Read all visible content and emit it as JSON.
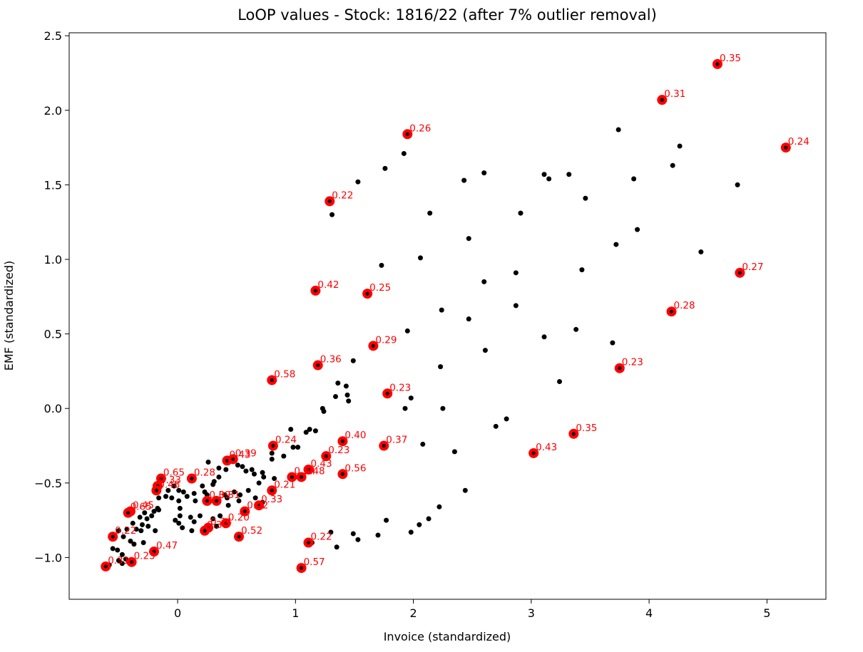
{
  "chart_data": {
    "type": "scatter",
    "title": "LoOP values - Stock: 1816/22 (after 7% outlier removal)",
    "xlabel": "Invoice (standardized)",
    "ylabel": "EMF (standardized)",
    "xlim": [
      -0.92,
      5.5
    ],
    "ylim": [
      -1.28,
      2.52
    ],
    "xticks": [
      0,
      1,
      2,
      3,
      4,
      5
    ],
    "yticks": [
      -1.0,
      -0.5,
      0.0,
      0.5,
      1.0,
      1.5,
      2.0,
      2.5
    ],
    "xtick_labels": [
      "0",
      "1",
      "2",
      "3",
      "4",
      "5"
    ],
    "ytick_labels": [
      "−1.0",
      "−0.5",
      "0.0",
      "0.5",
      "1.0",
      "1.5",
      "2.0",
      "2.5"
    ],
    "grid": false,
    "point_color": "#000000",
    "outlier_color": "#ff0000",
    "points": [
      [
        3.74,
        1.87
      ],
      [
        1.92,
        1.71
      ],
      [
        1.76,
        1.61
      ],
      [
        2.6,
        1.58
      ],
      [
        2.43,
        1.53
      ],
      [
        1.53,
        1.52
      ],
      [
        3.11,
        1.57
      ],
      [
        3.32,
        1.57
      ],
      [
        3.15,
        1.54
      ],
      [
        3.87,
        1.54
      ],
      [
        4.2,
        1.63
      ],
      [
        4.26,
        1.76
      ],
      [
        4.75,
        1.5
      ],
      [
        3.46,
        1.41
      ],
      [
        2.14,
        1.31
      ],
      [
        2.91,
        1.31
      ],
      [
        1.31,
        1.3
      ],
      [
        3.9,
        1.2
      ],
      [
        2.47,
        1.14
      ],
      [
        3.72,
        1.1
      ],
      [
        4.44,
        1.05
      ],
      [
        2.06,
        1.01
      ],
      [
        1.73,
        0.96
      ],
      [
        2.87,
        0.91
      ],
      [
        3.43,
        0.93
      ],
      [
        2.6,
        0.85
      ],
      [
        2.87,
        0.69
      ],
      [
        2.24,
        0.66
      ],
      [
        2.47,
        0.6
      ],
      [
        3.38,
        0.53
      ],
      [
        1.95,
        0.52
      ],
      [
        3.11,
        0.48
      ],
      [
        3.69,
        0.44
      ],
      [
        2.61,
        0.39
      ],
      [
        1.49,
        0.32
      ],
      [
        2.23,
        0.28
      ],
      [
        3.24,
        0.18
      ],
      [
        1.36,
        0.17
      ],
      [
        1.43,
        0.15
      ],
      [
        1.34,
        0.08
      ],
      [
        1.44,
        0.09
      ],
      [
        1.45,
        0.05
      ],
      [
        1.98,
        0.07
      ],
      [
        2.25,
        0.0
      ],
      [
        1.93,
        0.0
      ],
      [
        1.23,
        0.0
      ],
      [
        1.24,
        -0.02
      ],
      [
        2.7,
        -0.12
      ],
      [
        2.79,
        -0.07
      ],
      [
        0.96,
        -0.14
      ],
      [
        1.12,
        -0.14
      ],
      [
        1.17,
        -0.15
      ],
      [
        1.09,
        -0.16
      ],
      [
        2.08,
        -0.24
      ],
      [
        0.98,
        -0.26
      ],
      [
        1.02,
        -0.26
      ],
      [
        2.35,
        -0.29
      ],
      [
        0.9,
        -0.32
      ],
      [
        0.8,
        -0.3
      ],
      [
        0.8,
        -0.34
      ],
      [
        0.26,
        -0.36
      ],
      [
        0.35,
        -0.4
      ],
      [
        0.41,
        -0.41
      ],
      [
        0.51,
        -0.38
      ],
      [
        0.55,
        -0.39
      ],
      [
        0.58,
        -0.42
      ],
      [
        0.63,
        -0.41
      ],
      [
        0.65,
        -0.44
      ],
      [
        0.72,
        -0.43
      ],
      [
        0.73,
        -0.46
      ],
      [
        0.69,
        -0.5
      ],
      [
        0.82,
        -0.47
      ],
      [
        0.35,
        -0.46
      ],
      [
        0.31,
        -0.49
      ],
      [
        0.3,
        -0.51
      ],
      [
        0.21,
        -0.52
      ],
      [
        0.23,
        -0.56
      ],
      [
        0.14,
        -0.57
      ],
      [
        0.05,
        -0.56
      ],
      [
        0.01,
        -0.55
      ],
      [
        -0.03,
        -0.52
      ],
      [
        -0.08,
        -0.55
      ],
      [
        -0.1,
        -0.59
      ],
      [
        -0.16,
        -0.6
      ],
      [
        -0.05,
        -0.6
      ],
      [
        0.01,
        -0.62
      ],
      [
        0.08,
        -0.59
      ],
      [
        0.15,
        -0.62
      ],
      [
        0.25,
        -0.58
      ],
      [
        0.32,
        -0.62
      ],
      [
        0.4,
        -0.58
      ],
      [
        0.42,
        -0.6
      ],
      [
        0.48,
        -0.56
      ],
      [
        0.53,
        -0.58
      ],
      [
        0.6,
        -0.55
      ],
      [
        0.66,
        -0.6
      ],
      [
        0.72,
        -0.63
      ],
      [
        0.52,
        -0.62
      ],
      [
        0.43,
        -0.65
      ],
      [
        -0.17,
        -0.67
      ],
      [
        -0.2,
        -0.69
      ],
      [
        -0.28,
        -0.7
      ],
      [
        -0.26,
        -0.74
      ],
      [
        -0.22,
        -0.72
      ],
      [
        -0.32,
        -0.73
      ],
      [
        -0.3,
        -0.78
      ],
      [
        -0.25,
        -0.79
      ],
      [
        -0.38,
        -0.77
      ],
      [
        -0.35,
        -0.81
      ],
      [
        -0.43,
        -0.81
      ],
      [
        -0.19,
        -0.82
      ],
      [
        -0.31,
        -0.82
      ],
      [
        -0.16,
        -0.68
      ],
      [
        0.02,
        -0.67
      ],
      [
        0.02,
        -0.72
      ],
      [
        -0.02,
        -0.75
      ],
      [
        0.01,
        -0.77
      ],
      [
        0.04,
        -0.8
      ],
      [
        0.11,
        -0.73
      ],
      [
        0.14,
        -0.76
      ],
      [
        0.12,
        -0.82
      ],
      [
        0.19,
        -0.72
      ],
      [
        0.3,
        -0.74
      ],
      [
        0.33,
        -0.79
      ],
      [
        0.36,
        -0.72
      ],
      [
        -0.5,
        -0.82
      ],
      [
        -0.46,
        -0.86
      ],
      [
        -0.4,
        -0.89
      ],
      [
        -0.37,
        -0.91
      ],
      [
        -0.29,
        -0.9
      ],
      [
        -0.51,
        -0.95
      ],
      [
        -0.55,
        -0.94
      ],
      [
        -0.47,
        -0.98
      ],
      [
        -0.44,
        -1.01
      ],
      [
        -0.5,
        -1.02
      ],
      [
        -0.47,
        -1.04
      ],
      [
        -0.58,
        -1.05
      ],
      [
        1.3,
        -0.83
      ],
      [
        1.49,
        -0.84
      ],
      [
        1.53,
        -0.88
      ],
      [
        1.7,
        -0.85
      ],
      [
        1.77,
        -0.75
      ],
      [
        1.35,
        -0.93
      ],
      [
        1.14,
        -0.9
      ],
      [
        1.98,
        -0.83
      ],
      [
        2.05,
        -0.78
      ],
      [
        2.13,
        -0.74
      ],
      [
        2.22,
        -0.66
      ],
      [
        2.44,
        -0.55
      ]
    ],
    "outliers": [
      {
        "x": 4.58,
        "y": 2.31,
        "label": "0.35"
      },
      {
        "x": 4.11,
        "y": 2.07,
        "label": "0.31"
      },
      {
        "x": 1.95,
        "y": 1.84,
        "label": "0.26"
      },
      {
        "x": 5.16,
        "y": 1.75,
        "label": "0.24"
      },
      {
        "x": 1.29,
        "y": 1.39,
        "label": "0.22"
      },
      {
        "x": 4.77,
        "y": 0.91,
        "label": "0.27"
      },
      {
        "x": 1.17,
        "y": 0.79,
        "label": "0.42"
      },
      {
        "x": 1.61,
        "y": 0.77,
        "label": "0.25"
      },
      {
        "x": 4.19,
        "y": 0.65,
        "label": "0.28"
      },
      {
        "x": 1.66,
        "y": 0.42,
        "label": "0.29"
      },
      {
        "x": 1.19,
        "y": 0.29,
        "label": "0.36"
      },
      {
        "x": 3.75,
        "y": 0.27,
        "label": "0.23"
      },
      {
        "x": 0.8,
        "y": 0.19,
        "label": "0.58"
      },
      {
        "x": 1.78,
        "y": 0.1,
        "label": "0.23"
      },
      {
        "x": 3.36,
        "y": -0.17,
        "label": "0.35"
      },
      {
        "x": 1.4,
        "y": -0.22,
        "label": "0.40"
      },
      {
        "x": 0.81,
        "y": -0.25,
        "label": "0.24"
      },
      {
        "x": 1.75,
        "y": -0.25,
        "label": "0.37"
      },
      {
        "x": 3.02,
        "y": -0.3,
        "label": "0.43"
      },
      {
        "x": 1.26,
        "y": -0.32,
        "label": "0.23"
      },
      {
        "x": 0.42,
        "y": -0.35,
        "label": "0.43"
      },
      {
        "x": 0.47,
        "y": -0.34,
        "label": "0.39"
      },
      {
        "x": 1.11,
        "y": -0.41,
        "label": "0.43"
      },
      {
        "x": 1.4,
        "y": -0.44,
        "label": "0.56"
      },
      {
        "x": -0.14,
        "y": -0.47,
        "label": "0.65"
      },
      {
        "x": 0.12,
        "y": -0.47,
        "label": "0.28"
      },
      {
        "x": 0.97,
        "y": -0.46,
        "label": "0.34"
      },
      {
        "x": 1.05,
        "y": -0.46,
        "label": "0.48"
      },
      {
        "x": -0.17,
        "y": -0.52,
        "label": "0.33"
      },
      {
        "x": -0.18,
        "y": -0.55,
        "label": "0.48"
      },
      {
        "x": 0.8,
        "y": -0.55,
        "label": "0.21"
      },
      {
        "x": 0.25,
        "y": -0.62,
        "label": "0.39"
      },
      {
        "x": 0.33,
        "y": -0.62,
        "label": "0.31"
      },
      {
        "x": 0.69,
        "y": -0.65,
        "label": "0.33"
      },
      {
        "x": 0.57,
        "y": -0.69,
        "label": "0.42"
      },
      {
        "x": -0.4,
        "y": -0.69,
        "label": "0.45"
      },
      {
        "x": -0.42,
        "y": -0.7,
        "label": "0.65"
      },
      {
        "x": 0.41,
        "y": -0.77,
        "label": "0.20"
      },
      {
        "x": 0.26,
        "y": -0.8,
        "label": "0.34"
      },
      {
        "x": 0.23,
        "y": -0.82,
        "label": "0.37"
      },
      {
        "x": 0.52,
        "y": -0.86,
        "label": "0.52"
      },
      {
        "x": -0.55,
        "y": -0.86,
        "label": "0.22"
      },
      {
        "x": 1.11,
        "y": -0.9,
        "label": "0.22"
      },
      {
        "x": -0.2,
        "y": -0.96,
        "label": "0.47"
      },
      {
        "x": -0.39,
        "y": -1.03,
        "label": "0.23"
      },
      {
        "x": -0.61,
        "y": -1.06,
        "label": "0.31"
      },
      {
        "x": 1.05,
        "y": -1.07,
        "label": "0.57"
      }
    ]
  }
}
